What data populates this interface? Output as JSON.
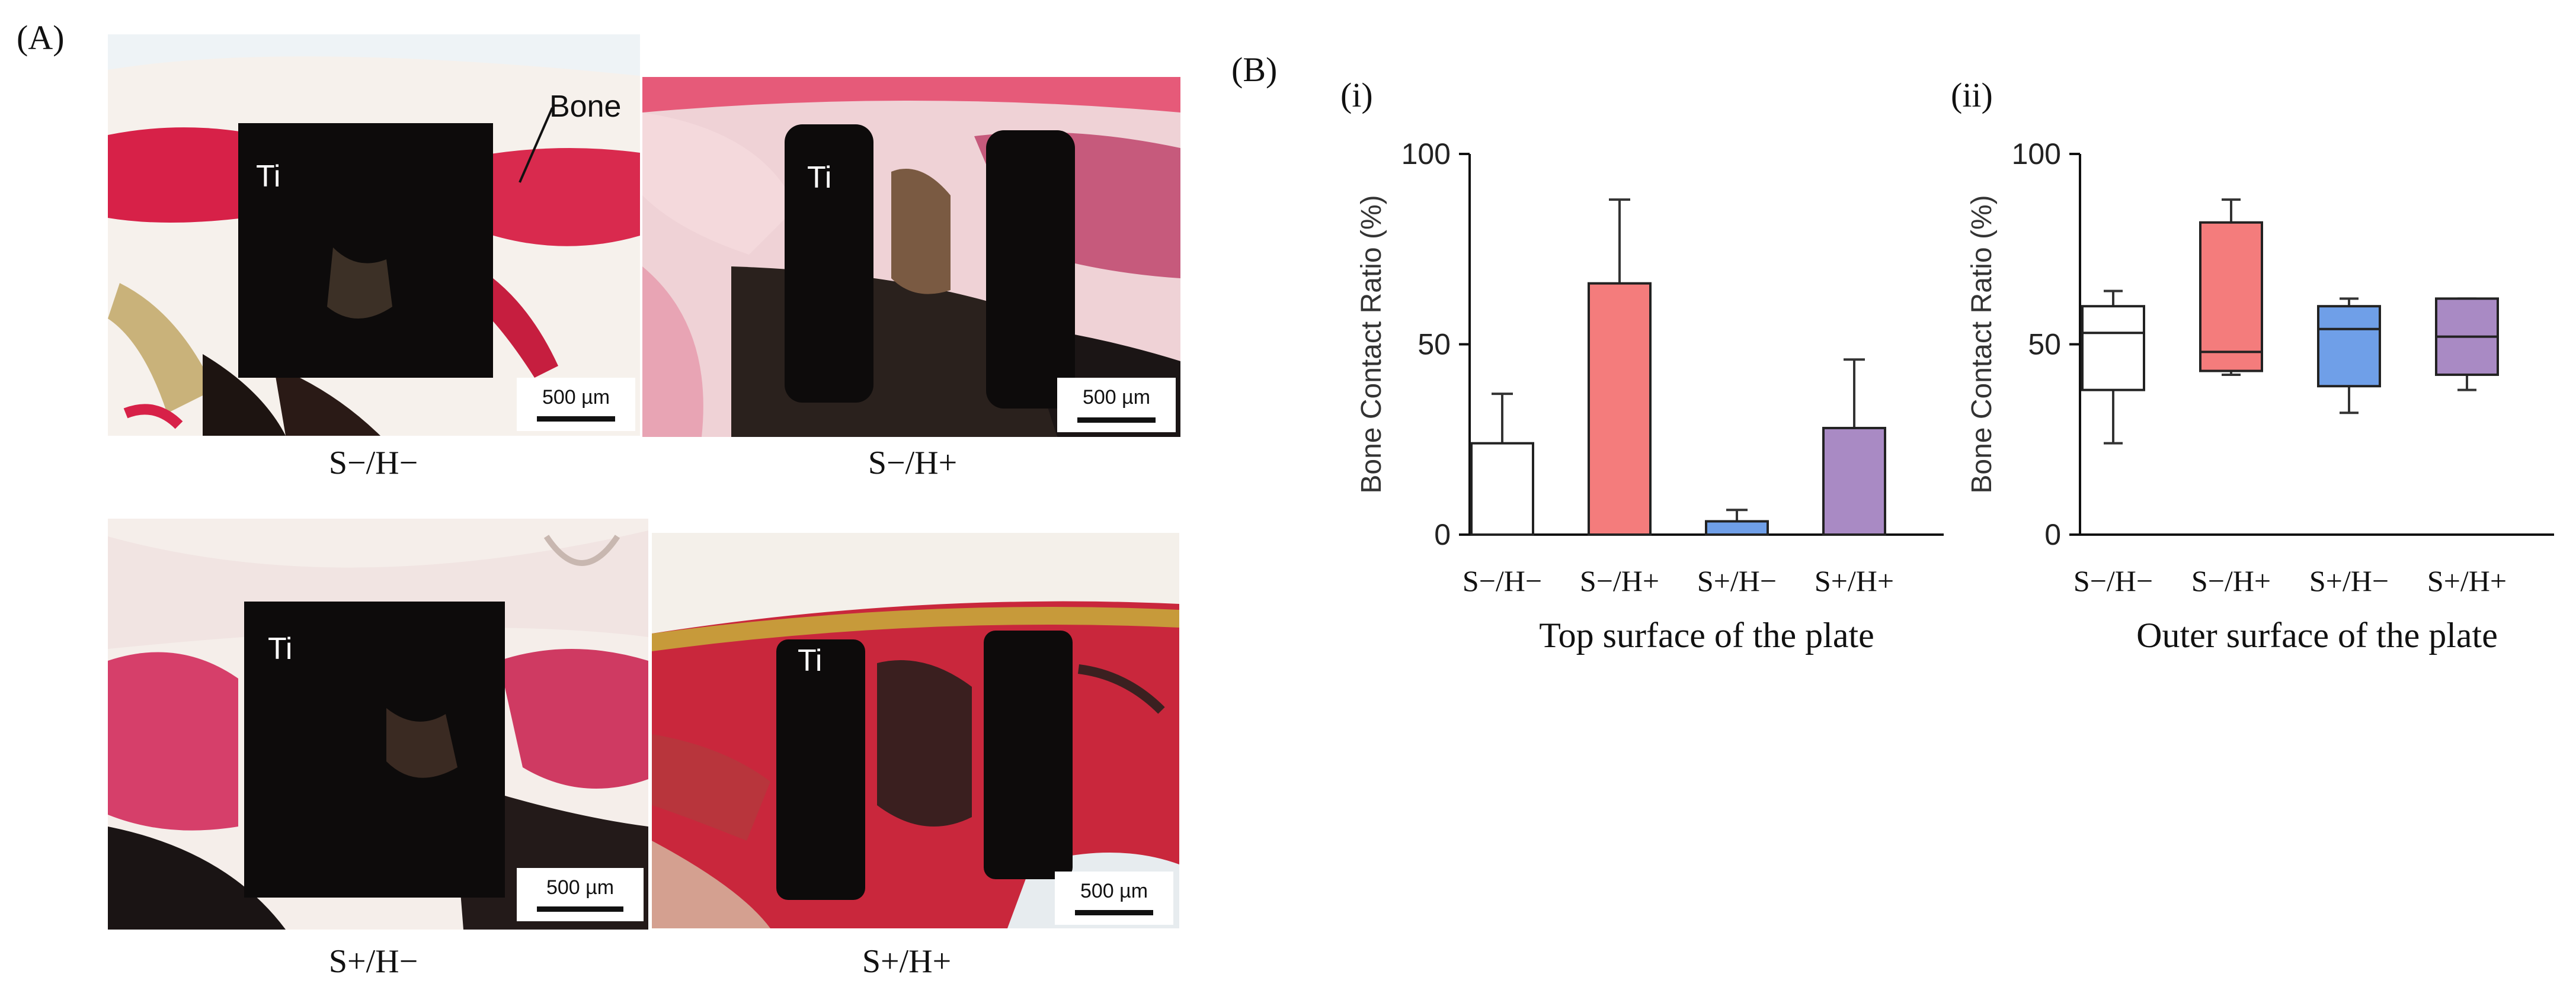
{
  "panel_a": {
    "letter": "(A)",
    "images": [
      {
        "caption": "S−/H−",
        "ti_label": "Ti",
        "bone_label": "Bone",
        "scale_label": "500 µm"
      },
      {
        "caption": "S−/H+",
        "ti_label": "Ti",
        "scale_label": "500 µm"
      },
      {
        "caption": "S+/H−",
        "ti_label": "Ti",
        "scale_label": "500 µm"
      },
      {
        "caption": "S+/H+",
        "ti_label": "Ti",
        "scale_label": "500 µm"
      }
    ]
  },
  "panel_b": {
    "letter": "(B)"
  },
  "chart_data": [
    {
      "panel": "(i)",
      "type": "bar",
      "xlabel": "Top surface of the plate",
      "ylabel": "Bone Contact Ratio (%)",
      "ylim": [
        0,
        100
      ],
      "yticks": [
        0,
        50,
        100
      ],
      "categories": [
        "S−/H−",
        "S−/H+",
        "S+/H−",
        "S+/H+"
      ],
      "values": [
        24,
        66,
        3.5,
        28
      ],
      "errors": [
        13,
        22,
        3,
        18
      ],
      "colors": [
        "#ffffff",
        "#f47c7c",
        "#6f9fe8",
        "#a98ac4"
      ]
    },
    {
      "panel": "(ii)",
      "type": "box",
      "xlabel": "Outer surface of the plate",
      "ylabel": "Bone Contact Ratio (%)",
      "ylim": [
        0,
        100
      ],
      "yticks": [
        0,
        50,
        100
      ],
      "categories": [
        "S−/H−",
        "S−/H+",
        "S+/H−",
        "S+/H+"
      ],
      "boxes": [
        {
          "min": 24,
          "q1": 38,
          "median": 53,
          "q3": 60,
          "max": 64
        },
        {
          "min": 42,
          "q1": 43,
          "median": 48,
          "q3": 82,
          "max": 88
        },
        {
          "min": 32,
          "q1": 39,
          "median": 54,
          "q3": 60,
          "max": 62
        },
        {
          "min": 38,
          "q1": 42,
          "median": 52,
          "q3": 62,
          "max": 62
        }
      ],
      "colors": [
        "#ffffff",
        "#f47c7c",
        "#6f9fe8",
        "#a98ac4"
      ]
    }
  ]
}
